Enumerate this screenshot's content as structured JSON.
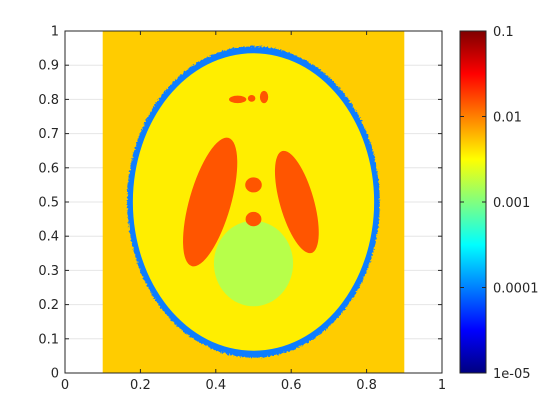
{
  "chart_data": {
    "type": "heatmap",
    "title": "",
    "xlabel": "",
    "ylabel": "",
    "xlim": [
      0,
      1
    ],
    "ylim": [
      0,
      1
    ],
    "grid": true,
    "xticks": [
      {
        "value": 0,
        "label": "0"
      },
      {
        "value": 0.2,
        "label": "0.2"
      },
      {
        "value": 0.4,
        "label": "0.4"
      },
      {
        "value": 0.6,
        "label": "0.6"
      },
      {
        "value": 0.8,
        "label": "0.8"
      },
      {
        "value": 1,
        "label": "1"
      }
    ],
    "yticks": [
      {
        "value": 0,
        "label": "0"
      },
      {
        "value": 0.1,
        "label": "0.1"
      },
      {
        "value": 0.2,
        "label": "0.2"
      },
      {
        "value": 0.3,
        "label": "0.3"
      },
      {
        "value": 0.4,
        "label": "0.4"
      },
      {
        "value": 0.5,
        "label": "0.5"
      },
      {
        "value": 0.6,
        "label": "0.6"
      },
      {
        "value": 0.7,
        "label": "0.7"
      },
      {
        "value": 0.8,
        "label": "0.8"
      },
      {
        "value": 0.9,
        "label": "0.9"
      },
      {
        "value": 1,
        "label": "1"
      }
    ],
    "colorbar": {
      "scale": "log",
      "range": [
        1e-05,
        0.1
      ],
      "colormap": "jet",
      "ticks": [
        {
          "value": 0.1,
          "label": "0.1"
        },
        {
          "value": 0.01,
          "label": "0.01"
        },
        {
          "value": 0.001,
          "label": "0.001"
        },
        {
          "value": 0.0001,
          "label": "0.0001"
        },
        {
          "value": 1e-05,
          "label": "1e-05"
        }
      ]
    },
    "regions": [
      {
        "name": "background-field",
        "shape": "rect",
        "x": [
          0.1,
          0.9
        ],
        "y": [
          0,
          1
        ],
        "value": 0.005,
        "color": "#ffcc00"
      },
      {
        "name": "outer-skull-ring",
        "shape": "ellipse",
        "cx": 0.5,
        "cy": 0.5,
        "rx": 0.335,
        "ry": 0.455,
        "rotation": 0,
        "value": 0.00015,
        "color": "#0a7dff"
      },
      {
        "name": "brain-interior",
        "shape": "ellipse",
        "cx": 0.5,
        "cy": 0.5,
        "rx": 0.32,
        "ry": 0.435,
        "rotation": 0,
        "value": 0.004,
        "color": "#ffee00"
      },
      {
        "name": "left-ventricle",
        "shape": "ellipse",
        "cx": 0.385,
        "cy": 0.5,
        "rx": 0.055,
        "ry": 0.195,
        "rotation": -16,
        "value": 0.02,
        "color": "#ff5500"
      },
      {
        "name": "right-ventricle",
        "shape": "ellipse",
        "cx": 0.615,
        "cy": 0.5,
        "rx": 0.045,
        "ry": 0.155,
        "rotation": 16,
        "value": 0.02,
        "color": "#ff5500"
      },
      {
        "name": "lower-lesion",
        "shape": "ellipse",
        "cx": 0.5,
        "cy": 0.32,
        "rx": 0.105,
        "ry": 0.125,
        "rotation": 0,
        "value": 0.0015,
        "color": "#b7ff4a"
      },
      {
        "name": "upper-dot",
        "shape": "ellipse",
        "cx": 0.5,
        "cy": 0.55,
        "rx": 0.022,
        "ry": 0.022,
        "rotation": 0,
        "value": 0.02,
        "color": "#ff5500"
      },
      {
        "name": "lower-dot",
        "shape": "ellipse",
        "cx": 0.5,
        "cy": 0.45,
        "rx": 0.021,
        "ry": 0.021,
        "rotation": 0,
        "value": 0.02,
        "color": "#ff5500"
      },
      {
        "name": "top-dot-left",
        "shape": "ellipse",
        "cx": 0.458,
        "cy": 0.8,
        "rx": 0.023,
        "ry": 0.011,
        "rotation": 0,
        "value": 0.02,
        "color": "#ff5500"
      },
      {
        "name": "top-dot-middle",
        "shape": "ellipse",
        "cx": 0.495,
        "cy": 0.803,
        "rx": 0.01,
        "ry": 0.01,
        "rotation": 0,
        "value": 0.02,
        "color": "#ff5500"
      },
      {
        "name": "top-dot-right",
        "shape": "ellipse",
        "cx": 0.528,
        "cy": 0.807,
        "rx": 0.011,
        "ry": 0.018,
        "rotation": 0,
        "value": 0.02,
        "color": "#ff5500"
      }
    ]
  }
}
